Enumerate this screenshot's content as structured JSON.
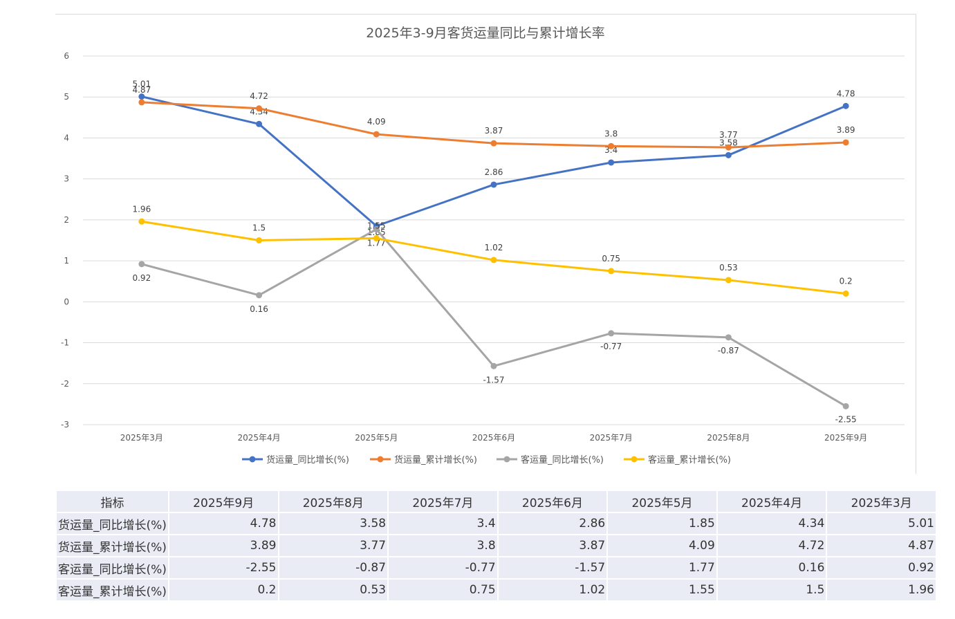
{
  "chart_data": {
    "type": "line",
    "title": "2025年3-9月客货运量同比与累计增长率",
    "categories": [
      "2025年3月",
      "2025年4月",
      "2025年5月",
      "2025年6月",
      "2025年7月",
      "2025年8月",
      "2025年9月"
    ],
    "ylim": [
      -3,
      6
    ],
    "yticks": [
      -3,
      -2,
      -1,
      0,
      1,
      2,
      3,
      4,
      5,
      6
    ],
    "grid": true,
    "legend_position": "bottom",
    "series": [
      {
        "name": "货运量_同比增长(%)",
        "color": "#4472c4",
        "values": [
          5.01,
          4.34,
          1.85,
          2.86,
          3.4,
          3.58,
          4.78
        ]
      },
      {
        "name": "货运量_累计增长(%)",
        "color": "#ed7d31",
        "values": [
          4.87,
          4.72,
          4.09,
          3.87,
          3.8,
          3.77,
          3.89
        ]
      },
      {
        "name": "客运量_同比增长(%)",
        "color": "#a5a5a5",
        "values": [
          0.92,
          0.16,
          1.77,
          -1.57,
          -0.77,
          -0.87,
          -2.55
        ]
      },
      {
        "name": "客运量_累计增长(%)",
        "color": "#ffc000",
        "values": [
          1.96,
          1.5,
          1.55,
          1.02,
          0.75,
          0.53,
          0.2
        ]
      }
    ]
  },
  "table": {
    "header": [
      "指标",
      "2025年9月",
      "2025年8月",
      "2025年7月",
      "2025年6月",
      "2025年5月",
      "2025年4月",
      "2025年3月"
    ],
    "rows": [
      {
        "label": "货运量_同比增长(%)",
        "cells": [
          "4.78",
          "3.58",
          "3.4",
          "2.86",
          "1.85",
          "4.34",
          "5.01"
        ]
      },
      {
        "label": "货运量_累计增长(%)",
        "cells": [
          "3.89",
          "3.77",
          "3.8",
          "3.87",
          "4.09",
          "4.72",
          "4.87"
        ]
      },
      {
        "label": "客运量_同比增长(%)",
        "cells": [
          "-2.55",
          "-0.87",
          "-0.77",
          "-1.57",
          "1.77",
          "0.16",
          "0.92"
        ]
      },
      {
        "label": "客运量_累计增长(%)",
        "cells": [
          "0.2",
          "0.53",
          "0.75",
          "1.02",
          "1.55",
          "1.5",
          "1.96"
        ]
      }
    ]
  }
}
